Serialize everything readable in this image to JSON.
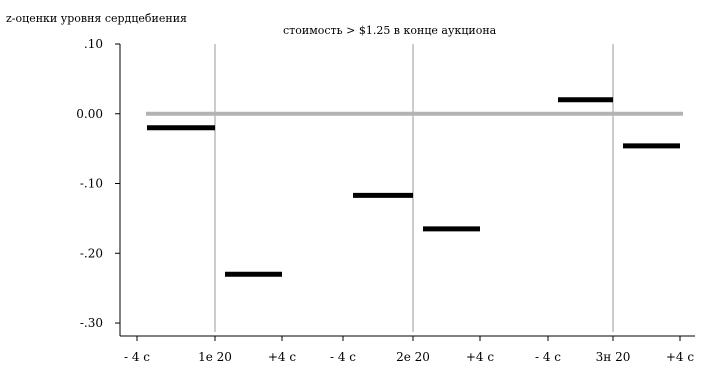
{
  "chart_data": {
    "type": "line",
    "ylabel": "z-оценки уровня сердцебиения",
    "title": "стоимость > $1.25 в конце аукциона",
    "ylim": [
      -0.31,
      0.1
    ],
    "yticks": [
      {
        "value": 0.1,
        "label": ".10"
      },
      {
        "value": 0.0,
        "label": "0.00"
      },
      {
        "value": -0.1,
        "label": "-.10"
      },
      {
        "value": -0.2,
        "label": "-.20"
      },
      {
        "value": -0.3,
        "label": "-.30"
      }
    ],
    "categories": [
      "- 4 с",
      "1е 20",
      "+4 с",
      "- 4 с",
      "2е 20",
      "+4 с",
      "- 4 с",
      "3н 20",
      "+4 с"
    ],
    "reference_line": {
      "value": 0.0,
      "color": "#b3b3b3"
    },
    "bid_lines": [
      "1е 20",
      "2е 20",
      "3н 20"
    ],
    "segments": [
      {
        "from": "- 4 с",
        "to": "1е 20",
        "group": 0,
        "value": -0.02
      },
      {
        "from": "1е 20",
        "to": "+4 с",
        "group": 0,
        "value": -0.23
      },
      {
        "from": "- 4 с",
        "to": "2е 20",
        "group": 1,
        "value": -0.117
      },
      {
        "from": "2е 20",
        "to": "+4 с",
        "group": 1,
        "value": -0.165
      },
      {
        "from": "- 4 с",
        "to": "3н 20",
        "group": 2,
        "value": 0.02
      },
      {
        "from": "3н 20",
        "to": "+4 с",
        "group": 2,
        "value": -0.046
      }
    ],
    "colors": {
      "series": "#000000",
      "reference": "#b3b3b3",
      "gridline": "#999999"
    }
  }
}
